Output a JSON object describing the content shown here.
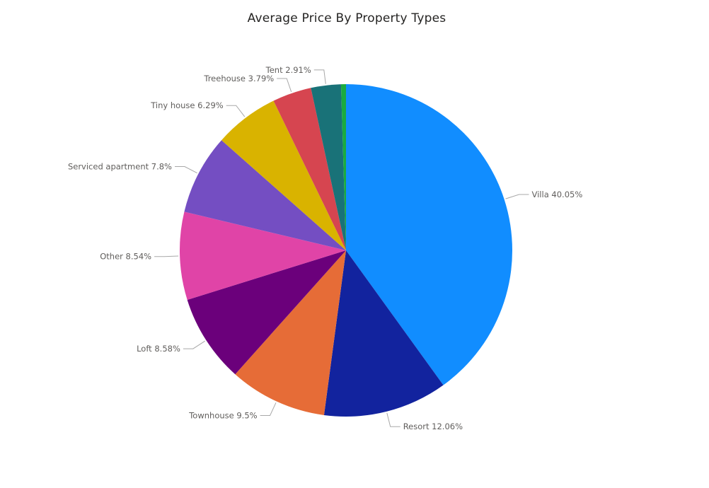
{
  "chart_data": {
    "type": "pie",
    "title": "Average Price By Property Types",
    "slices": [
      {
        "label": "Villa",
        "value": 40.05,
        "display": "Villa 40.05%",
        "color": "#118DFF"
      },
      {
        "label": "Resort",
        "value": 12.06,
        "display": "Resort 12.06%",
        "color": "#12239E"
      },
      {
        "label": "Townhouse",
        "value": 9.5,
        "display": "Townhouse 9.5%",
        "color": "#E66C37"
      },
      {
        "label": "Loft",
        "value": 8.58,
        "display": "Loft 8.58%",
        "color": "#6B007B"
      },
      {
        "label": "Other",
        "value": 8.54,
        "display": "Other 8.54%",
        "color": "#E044A7"
      },
      {
        "label": "Serviced apartment",
        "value": 7.8,
        "display": "Serviced apartment 7.8%",
        "color": "#744EC2"
      },
      {
        "label": "Tiny house",
        "value": 6.29,
        "display": "Tiny house 6.29%",
        "color": "#D9B300"
      },
      {
        "label": "Treehouse",
        "value": 3.79,
        "display": "Treehouse 3.79%",
        "color": "#D64550"
      },
      {
        "label": "Tent",
        "value": 2.91,
        "display": "Tent 2.91%",
        "color": "#197278"
      },
      {
        "label": "",
        "value": 0.48,
        "display": "",
        "color": "#1AAB40"
      }
    ],
    "legend": "none",
    "data_labels": "outside"
  }
}
